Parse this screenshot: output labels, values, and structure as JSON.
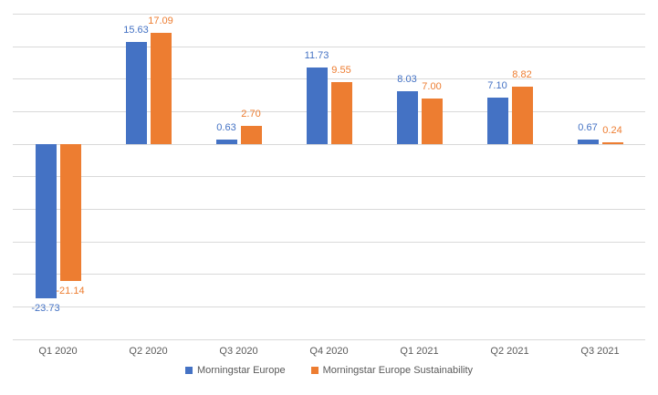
{
  "chart_data": {
    "type": "bar",
    "title": "",
    "xlabel": "",
    "ylabel": "",
    "categories": [
      "Q1 2020",
      "Q2 2020",
      "Q3 2020",
      "Q4 2020",
      "Q1 2021",
      "Q2 2021",
      "Q3 2021"
    ],
    "series": [
      {
        "name": "Morningstar Europe",
        "color": "#4472C4",
        "values": [
          -23.73,
          15.63,
          0.63,
          11.73,
          8.03,
          7.1,
          0.67
        ],
        "labels": [
          "-23.73",
          "15.63",
          "0.63",
          "11.73",
          "8.03",
          "7.10",
          "0.67"
        ]
      },
      {
        "name": "Morningstar Europe Sustainability",
        "color": "#ED7D31",
        "values": [
          -21.14,
          17.09,
          2.7,
          9.55,
          7.0,
          8.82,
          0.24
        ],
        "labels": [
          "-21.14",
          "17.09",
          "2.70",
          "9.55",
          "7.00",
          "8.82",
          "0.24"
        ]
      }
    ],
    "data_labels": true,
    "ylim": [
      -30,
      20
    ],
    "grid_step": 5,
    "grid": true,
    "legend_position": "bottom",
    "colors": {
      "gridline": "#D9D9D9",
      "axis_text": "#595959",
      "background": "#FFFFFF"
    }
  }
}
